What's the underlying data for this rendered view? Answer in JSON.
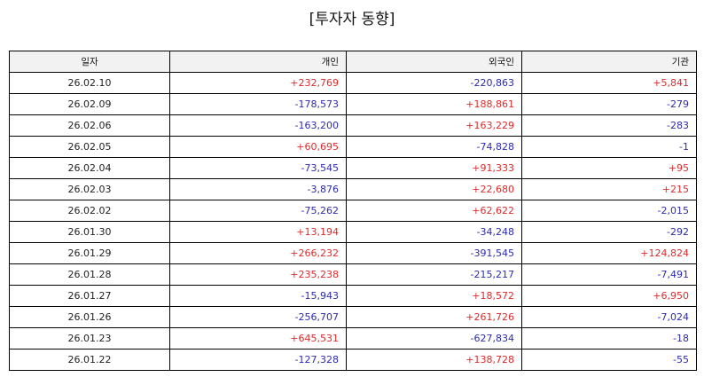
{
  "title": "[투자자 동향]",
  "colors": {
    "positive": "#e02a2a",
    "negative": "#2b2bb3",
    "header_bg": "#f2f2f2"
  },
  "headers": {
    "date": "일자",
    "individual": "개인",
    "foreign": "외국인",
    "institution": "기관"
  },
  "rows": [
    {
      "date": "26.02.10",
      "individual": "+232,769",
      "foreign": "-220,863",
      "institution": "+5,841"
    },
    {
      "date": "26.02.09",
      "individual": "-178,573",
      "foreign": "+188,861",
      "institution": "-279"
    },
    {
      "date": "26.02.06",
      "individual": "-163,200",
      "foreign": "+163,229",
      "institution": "-283"
    },
    {
      "date": "26.02.05",
      "individual": "+60,695",
      "foreign": "-74,828",
      "institution": "-1"
    },
    {
      "date": "26.02.04",
      "individual": "-73,545",
      "foreign": "+91,333",
      "institution": "+95"
    },
    {
      "date": "26.02.03",
      "individual": "-3,876",
      "foreign": "+22,680",
      "institution": "+215"
    },
    {
      "date": "26.02.02",
      "individual": "-75,262",
      "foreign": "+62,622",
      "institution": "-2,015"
    },
    {
      "date": "26.01.30",
      "individual": "+13,194",
      "foreign": "-34,248",
      "institution": "-292"
    },
    {
      "date": "26.01.29",
      "individual": "+266,232",
      "foreign": "-391,545",
      "institution": "+124,824"
    },
    {
      "date": "26.01.28",
      "individual": "+235,238",
      "foreign": "-215,217",
      "institution": "-7,491"
    },
    {
      "date": "26.01.27",
      "individual": "-15,943",
      "foreign": "+18,572",
      "institution": "+6,950"
    },
    {
      "date": "26.01.26",
      "individual": "-256,707",
      "foreign": "+261,726",
      "institution": "-7,024"
    },
    {
      "date": "26.01.23",
      "individual": "+645,531",
      "foreign": "-627,834",
      "institution": "-18"
    },
    {
      "date": "26.01.22",
      "individual": "-127,328",
      "foreign": "+138,728",
      "institution": "-55"
    }
  ]
}
